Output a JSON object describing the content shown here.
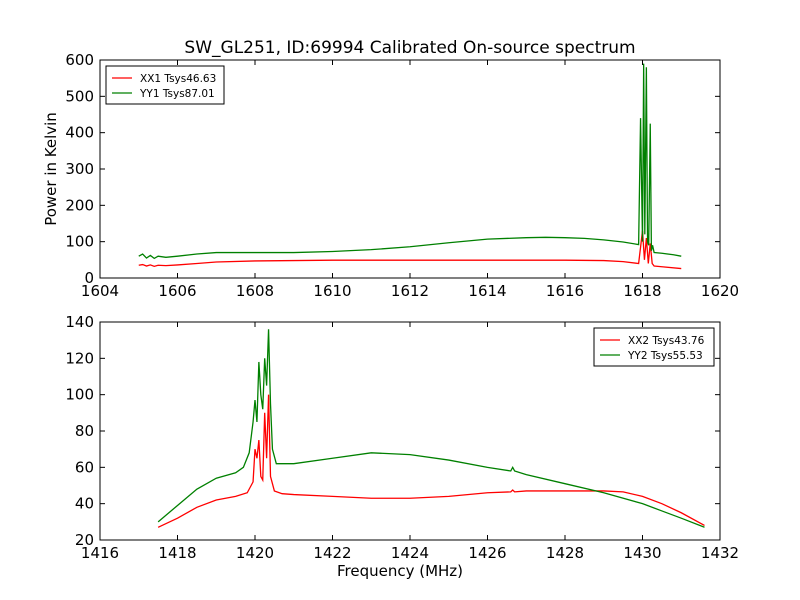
{
  "title": "SW_GL251, ID:69994 Calibrated On-source spectrum",
  "colors": {
    "xx": "#ff0000",
    "yy": "#008000",
    "axis": "#000000",
    "background": "#ffffff"
  },
  "chart_data": [
    {
      "type": "line",
      "ylabel": "Power in Kelvin",
      "xlabel": "",
      "xlim": [
        1604,
        1620
      ],
      "ylim": [
        0,
        600
      ],
      "xticks": [
        1604,
        1606,
        1608,
        1610,
        1612,
        1614,
        1616,
        1618,
        1620
      ],
      "yticks": [
        0,
        100,
        200,
        300,
        400,
        500,
        600
      ],
      "grid": false,
      "legend": "top-left",
      "series": [
        {
          "name": "XX1 Tsys46.63",
          "color": "#ff0000",
          "x": [
            1605.0,
            1605.1,
            1605.2,
            1605.3,
            1605.4,
            1605.5,
            1605.7,
            1606.0,
            1606.5,
            1607.0,
            1608.0,
            1610.0,
            1612.0,
            1614.0,
            1615.0,
            1616.0,
            1617.0,
            1617.5,
            1617.9,
            1618.0,
            1618.05,
            1618.1,
            1618.15,
            1618.2,
            1618.25,
            1618.3,
            1618.5,
            1619.0
          ],
          "y": [
            35,
            37,
            33,
            36,
            32,
            35,
            34,
            36,
            40,
            44,
            47,
            49,
            49,
            49,
            49,
            49,
            48,
            45,
            40,
            130,
            50,
            110,
            40,
            95,
            40,
            33,
            31,
            26
          ]
        },
        {
          "name": "YY1 Tsys87.01",
          "color": "#008000",
          "x": [
            1605.0,
            1605.1,
            1605.2,
            1605.3,
            1605.4,
            1605.5,
            1605.7,
            1606.0,
            1606.5,
            1607.0,
            1608.0,
            1609.0,
            1610.0,
            1611.0,
            1612.0,
            1613.0,
            1614.0,
            1615.0,
            1615.5,
            1616.0,
            1616.5,
            1617.0,
            1617.5,
            1617.9,
            1617.95,
            1618.0,
            1618.03,
            1618.06,
            1618.1,
            1618.13,
            1618.16,
            1618.2,
            1618.23,
            1618.26,
            1618.3,
            1618.5,
            1618.8,
            1619.0
          ],
          "y": [
            60,
            66,
            55,
            62,
            54,
            60,
            57,
            60,
            66,
            70,
            70,
            70,
            73,
            78,
            86,
            97,
            107,
            111,
            112,
            111,
            109,
            105,
            99,
            92,
            440,
            100,
            590,
            120,
            580,
            100,
            90,
            425,
            75,
            90,
            70,
            68,
            64,
            60
          ]
        }
      ]
    },
    {
      "type": "line",
      "ylabel": "",
      "xlabel": "Frequency (MHz)",
      "xlim": [
        1416,
        1432
      ],
      "ylim": [
        20,
        140
      ],
      "xticks": [
        1416,
        1418,
        1420,
        1422,
        1424,
        1426,
        1428,
        1430,
        1432
      ],
      "yticks": [
        20,
        40,
        60,
        80,
        100,
        120,
        140
      ],
      "grid": false,
      "legend": "top-right",
      "series": [
        {
          "name": "XX2 Tsys43.76",
          "color": "#ff0000",
          "x": [
            1417.5,
            1418.0,
            1418.5,
            1419.0,
            1419.5,
            1419.8,
            1419.95,
            1420.0,
            1420.05,
            1420.1,
            1420.15,
            1420.2,
            1420.25,
            1420.3,
            1420.35,
            1420.4,
            1420.5,
            1420.7,
            1421.0,
            1422.0,
            1423.0,
            1424.0,
            1425.0,
            1426.0,
            1426.6,
            1426.65,
            1426.7,
            1427.0,
            1428.0,
            1429.0,
            1429.5,
            1430.0,
            1430.5,
            1431.0,
            1431.6
          ],
          "y": [
            27,
            32,
            38,
            42,
            44,
            46,
            52,
            70,
            65,
            75,
            55,
            53,
            90,
            65,
            100,
            55,
            47,
            45.5,
            45,
            44,
            43,
            43,
            44,
            46,
            46.5,
            47.5,
            46.5,
            47,
            47,
            47,
            46.5,
            44,
            40,
            35,
            28
          ]
        },
        {
          "name": "YY2 Tsys55.53",
          "color": "#008000",
          "x": [
            1417.5,
            1418.0,
            1418.5,
            1419.0,
            1419.5,
            1419.7,
            1419.85,
            1419.95,
            1420.0,
            1420.05,
            1420.1,
            1420.15,
            1420.2,
            1420.25,
            1420.3,
            1420.35,
            1420.4,
            1420.45,
            1420.55,
            1421.0,
            1422.0,
            1423.0,
            1424.0,
            1425.0,
            1426.0,
            1426.6,
            1426.65,
            1426.7,
            1427.0,
            1428.0,
            1429.0,
            1430.0,
            1430.5,
            1431.0,
            1431.6
          ],
          "y": [
            30,
            39,
            48,
            54,
            57,
            60,
            68,
            85,
            97,
            85,
            118,
            100,
            92,
            120,
            105,
            136,
            95,
            70,
            62,
            62,
            65,
            68,
            67,
            64,
            60,
            58,
            60,
            58,
            56,
            51,
            46,
            40,
            36,
            32,
            27
          ]
        }
      ]
    }
  ]
}
